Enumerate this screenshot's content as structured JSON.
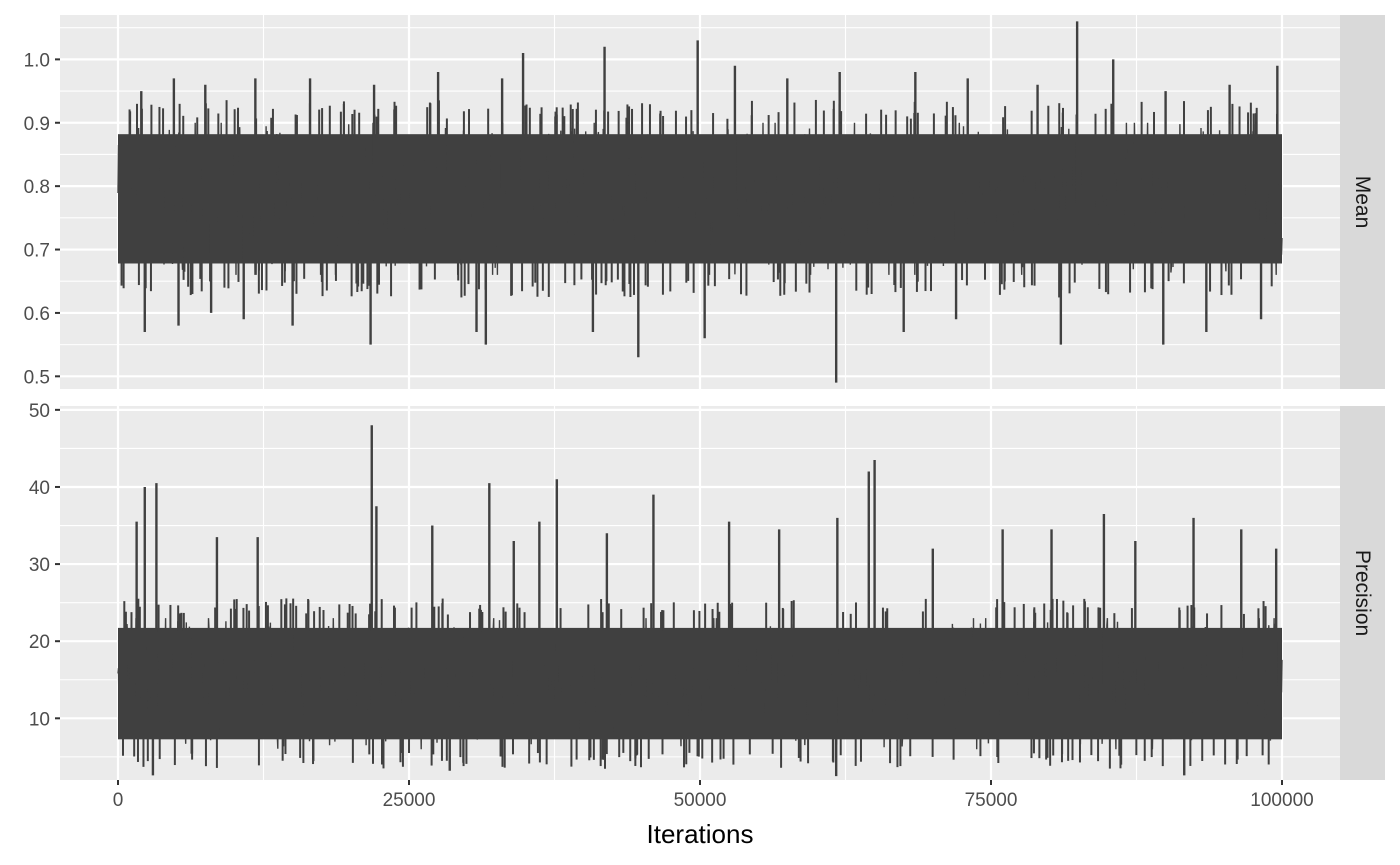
{
  "chart_data": {
    "type": "line",
    "xlabel": "Iterations",
    "x_range": [
      0,
      100000
    ],
    "x_ticks": [
      0,
      25000,
      50000,
      75000,
      100000
    ],
    "x_tick_labels": [
      "0",
      "25000",
      "50000",
      "75000",
      "100000"
    ],
    "grid": true,
    "theme": "ggplot2 grey",
    "line_color": "#404040",
    "panels": [
      {
        "strip_label": "Mean",
        "ylim": [
          0.48,
          1.07
        ],
        "y_ticks": [
          0.5,
          0.6,
          0.7,
          0.8,
          0.9,
          1.0
        ],
        "y_tick_labels": [
          "0.5",
          "0.6",
          "0.7",
          "0.8",
          "0.9",
          "1.0"
        ],
        "band_low": 0.66,
        "band_high": 0.9,
        "spikes": [
          {
            "x": 2000,
            "y": 0.95
          },
          {
            "x": 4800,
            "y": 0.97
          },
          {
            "x": 7500,
            "y": 0.96
          },
          {
            "x": 11800,
            "y": 0.97
          },
          {
            "x": 16500,
            "y": 0.97
          },
          {
            "x": 22000,
            "y": 0.96
          },
          {
            "x": 27500,
            "y": 0.98
          },
          {
            "x": 33000,
            "y": 0.97
          },
          {
            "x": 34800,
            "y": 1.01
          },
          {
            "x": 41800,
            "y": 1.02
          },
          {
            "x": 49800,
            "y": 1.03
          },
          {
            "x": 53000,
            "y": 0.99
          },
          {
            "x": 57500,
            "y": 0.97
          },
          {
            "x": 62000,
            "y": 0.98
          },
          {
            "x": 68500,
            "y": 0.98
          },
          {
            "x": 73000,
            "y": 0.97
          },
          {
            "x": 79000,
            "y": 0.96
          },
          {
            "x": 82400,
            "y": 1.06
          },
          {
            "x": 85500,
            "y": 1.0
          },
          {
            "x": 90000,
            "y": 0.95
          },
          {
            "x": 95500,
            "y": 0.96
          },
          {
            "x": 99600,
            "y": 0.99
          },
          {
            "x": 2300,
            "y": 0.57
          },
          {
            "x": 5200,
            "y": 0.58
          },
          {
            "x": 8000,
            "y": 0.6
          },
          {
            "x": 10800,
            "y": 0.59
          },
          {
            "x": 15000,
            "y": 0.58
          },
          {
            "x": 21700,
            "y": 0.55
          },
          {
            "x": 30800,
            "y": 0.57
          },
          {
            "x": 31600,
            "y": 0.55
          },
          {
            "x": 40800,
            "y": 0.57
          },
          {
            "x": 44700,
            "y": 0.53
          },
          {
            "x": 50400,
            "y": 0.56
          },
          {
            "x": 61700,
            "y": 0.49
          },
          {
            "x": 67500,
            "y": 0.57
          },
          {
            "x": 72000,
            "y": 0.59
          },
          {
            "x": 81000,
            "y": 0.55
          },
          {
            "x": 89800,
            "y": 0.55
          },
          {
            "x": 93500,
            "y": 0.57
          },
          {
            "x": 98200,
            "y": 0.59
          }
        ]
      },
      {
        "strip_label": "Precision",
        "ylim": [
          2.0,
          50.5
        ],
        "y_ticks": [
          10,
          20,
          30,
          40,
          50
        ],
        "y_tick_labels": [
          "10",
          "20",
          "30",
          "40",
          "50"
        ],
        "band_low": 6.0,
        "band_high": 23.0,
        "spikes": [
          {
            "x": 1600,
            "y": 35.5
          },
          {
            "x": 2300,
            "y": 40.0
          },
          {
            "x": 3300,
            "y": 40.5
          },
          {
            "x": 8500,
            "y": 33.5
          },
          {
            "x": 12000,
            "y": 33.5
          },
          {
            "x": 21800,
            "y": 48.0
          },
          {
            "x": 22200,
            "y": 37.5
          },
          {
            "x": 27000,
            "y": 35.0
          },
          {
            "x": 31900,
            "y": 40.5
          },
          {
            "x": 34000,
            "y": 33.0
          },
          {
            "x": 36200,
            "y": 35.5
          },
          {
            "x": 37700,
            "y": 41.0
          },
          {
            "x": 42000,
            "y": 34.0
          },
          {
            "x": 46000,
            "y": 39.0
          },
          {
            "x": 52500,
            "y": 35.5
          },
          {
            "x": 56800,
            "y": 34.5
          },
          {
            "x": 61800,
            "y": 36.0
          },
          {
            "x": 64500,
            "y": 42.0
          },
          {
            "x": 65000,
            "y": 43.5
          },
          {
            "x": 70000,
            "y": 32.0
          },
          {
            "x": 76000,
            "y": 34.5
          },
          {
            "x": 80200,
            "y": 34.5
          },
          {
            "x": 84700,
            "y": 36.5
          },
          {
            "x": 87400,
            "y": 33.0
          },
          {
            "x": 92400,
            "y": 36.0
          },
          {
            "x": 96500,
            "y": 34.5
          },
          {
            "x": 99500,
            "y": 32.0
          },
          {
            "x": 3000,
            "y": 2.6
          },
          {
            "x": 28500,
            "y": 3.2
          },
          {
            "x": 61700,
            "y": 2.5
          },
          {
            "x": 91600,
            "y": 2.6
          }
        ]
      }
    ]
  }
}
